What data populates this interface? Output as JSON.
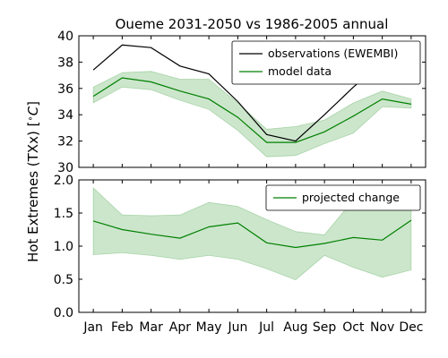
{
  "chart_data": [
    {
      "type": "line",
      "title": "Oueme 2031-2050 vs 1986-2005 annual",
      "ylabel": "Hot Extremes (TXx) [$^\\circ C$]",
      "ylabel_parts": {
        "main": "Hot Extremes (TXx) [",
        "degree": "∘",
        "unit": "C",
        "close": "]"
      },
      "categories": [
        "Jan",
        "Feb",
        "Mar",
        "Apr",
        "May",
        "Jun",
        "Jul",
        "Aug",
        "Sep",
        "Oct",
        "Nov",
        "Dec"
      ],
      "ylim": [
        30,
        40
      ],
      "yticks": [
        "30",
        "32",
        "34",
        "36",
        "38",
        "40"
      ],
      "legend_position": "upper-right",
      "colors": {
        "observations": "#000000",
        "model": "#008000",
        "band": "#008000"
      },
      "series": [
        {
          "name": "observations (EWEMBI)",
          "values": [
            37.4,
            39.3,
            39.1,
            37.7,
            37.1,
            35.0,
            32.5,
            32.0,
            34.0,
            36.1,
            38.0,
            37.2
          ]
        },
        {
          "name": "model data",
          "values": [
            35.4,
            36.8,
            36.5,
            35.8,
            35.2,
            33.8,
            31.9,
            31.9,
            32.7,
            33.9,
            35.2,
            34.8
          ]
        }
      ],
      "band": {
        "lower": [
          34.9,
          36.1,
          35.9,
          35.1,
          34.4,
          32.8,
          30.8,
          30.9,
          31.8,
          32.6,
          34.6,
          34.5
        ],
        "upper": [
          36.1,
          37.2,
          37.3,
          36.7,
          36.7,
          34.9,
          32.9,
          33.1,
          33.6,
          34.9,
          35.8,
          35.2
        ]
      }
    },
    {
      "type": "line",
      "categories": [
        "Jan",
        "Feb",
        "Mar",
        "Apr",
        "May",
        "Jun",
        "Jul",
        "Aug",
        "Sep",
        "Oct",
        "Nov",
        "Dec"
      ],
      "ylim": [
        0,
        2
      ],
      "yticks": [
        "0.0",
        "0.5",
        "1.0",
        "1.5",
        "2.0"
      ],
      "legend_position": "upper-right",
      "colors": {
        "change": "#008000",
        "band": "#008000"
      },
      "series": [
        {
          "name": "projected change",
          "values": [
            1.38,
            1.25,
            1.18,
            1.12,
            1.29,
            1.35,
            1.05,
            0.98,
            1.04,
            1.13,
            1.09,
            1.39
          ]
        }
      ],
      "band": {
        "lower": [
          0.87,
          0.9,
          0.86,
          0.8,
          0.86,
          0.8,
          0.66,
          0.49,
          0.86,
          0.68,
          0.53,
          0.64
        ],
        "upper": [
          1.88,
          1.47,
          1.46,
          1.47,
          1.66,
          1.6,
          1.4,
          1.22,
          1.17,
          1.7,
          1.57,
          1.83
        ]
      }
    }
  ]
}
